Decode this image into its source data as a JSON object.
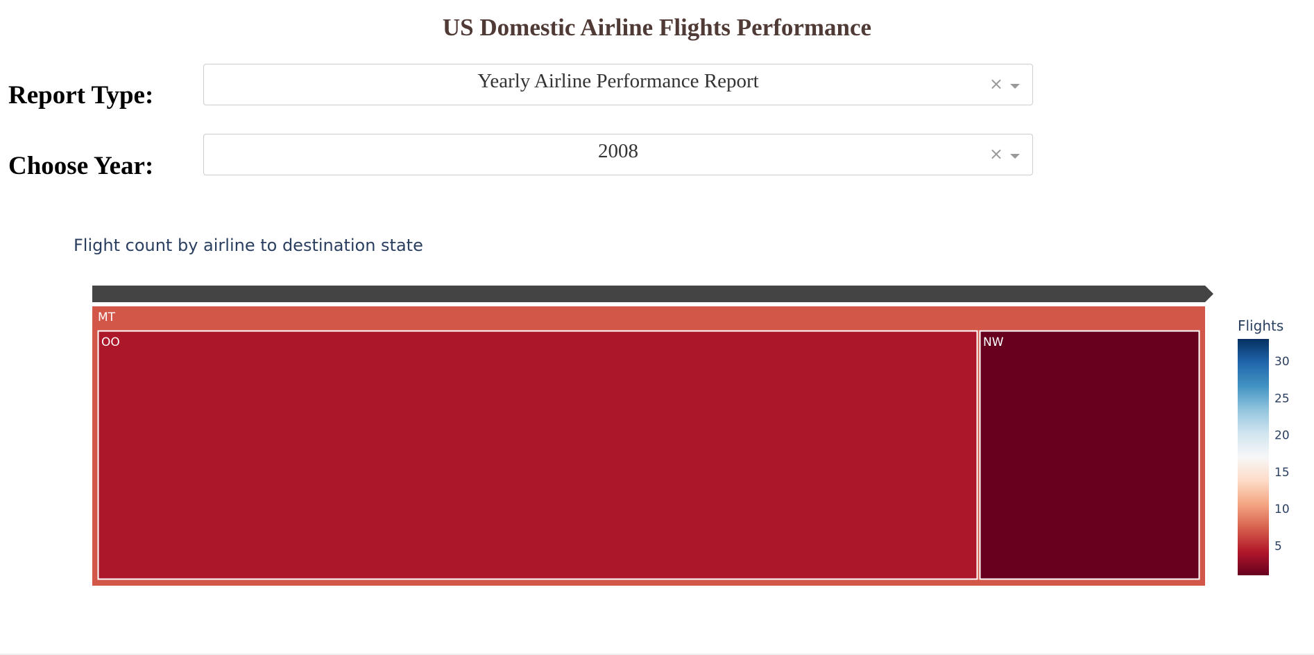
{
  "page": {
    "title": "US Domestic Airline Flights Performance"
  },
  "report_type": {
    "label": "Report Type:",
    "value": "Yearly Airline Performance Report",
    "clear": "×"
  },
  "year": {
    "label": "Choose Year:",
    "value": "2008",
    "clear": "×"
  },
  "chart_data": {
    "type": "treemap",
    "title": "Flight count by airline to destination state",
    "root": {
      "label": "MT",
      "value": 7
    },
    "children": [
      {
        "label": "OO",
        "parent": "MT",
        "value": 4
      },
      {
        "label": "NW",
        "parent": "MT",
        "value": 1
      }
    ],
    "colorbar": {
      "title": "Flights",
      "range": [
        1,
        33
      ],
      "ticks": [
        5,
        10,
        15,
        20,
        25,
        30
      ],
      "colorscale": [
        "#67001f",
        "#b2182b",
        "#d6604d",
        "#f4a582",
        "#fddbc7",
        "#f7f7f7",
        "#d1e5f0",
        "#92c5de",
        "#4393c3",
        "#2166ac",
        "#053061"
      ]
    },
    "colors": {
      "pathbar": "#444444",
      "tile_border": "#ffffff",
      "label": "#ffffff",
      "tick_text": "#2a3f5f"
    }
  }
}
